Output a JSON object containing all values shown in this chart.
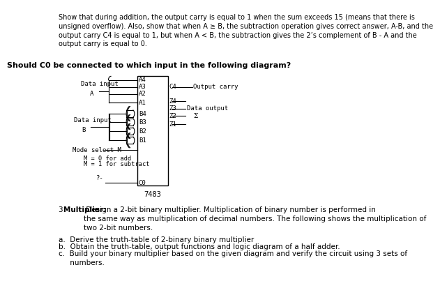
{
  "bg_color": "#ffffff",
  "text_color": "#000000",
  "header_text_lines": [
    "Show that during addition, the output carry is equal to 1 when the sum exceeds 15 (means that there is",
    "unsigned overflow). Also, show that when A ≥ B, the subtraction operation gives correct answer, A-B, and the",
    "output carry C4 is equal to 1, but when A < B, the subtraction gives the 2’s complement of B - A and the",
    "output carry is equal to 0."
  ],
  "bold_question": "Should C0 be connected to which input in the following diagram?",
  "bottom_text_intro": "3. Multiplier: Design a 2-bit binary multiplier. Multiplication of binary number is performed in\nthe same way as multiplication of decimal numbers. The following shows the multiplication of\ntwo 2-bit numbers.",
  "bottom_items": [
    "a.  Derive the truth-table of 2-binary binary multiplier",
    "b.  Obtain the truth-table, output functions and logic diagram of a half adder.",
    "c.  Build your binary multiplier based on the given diagram and verify the circuit using 3 sets of\n     numbers."
  ],
  "a_labels": [
    "A4",
    "A3",
    "A2",
    "A1"
  ],
  "b_labels": [
    "B4",
    "B3",
    "B2",
    "B1"
  ],
  "z_labels": [
    "Z4",
    "Z3",
    "Z2",
    "Z1"
  ],
  "ic_label": "7483",
  "mono_fs": 6.5,
  "body_fs": 7.8,
  "bold_q_fs": 8.5
}
